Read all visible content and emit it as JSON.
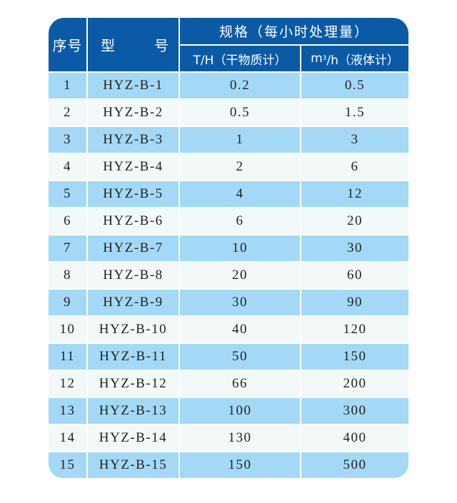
{
  "header": {
    "col_index": "序号",
    "col_model_a": "型",
    "col_model_b": "号",
    "spec_group": "规格（每小时处理量）",
    "spec_dry": "T/H（干物质计）",
    "spec_liquid_unit": "m",
    "spec_liquid_sup": "3",
    "spec_liquid_rest": "/h（液体计）"
  },
  "colors": {
    "header": "#0b5aa6",
    "row_odd": "#a3d9f6",
    "row_even": "#f3f8f8"
  },
  "rows": [
    {
      "no": "1",
      "model": "HYZ-B-1",
      "dry": "0.2",
      "liquid": "0.5"
    },
    {
      "no": "2",
      "model": "HYZ-B-2",
      "dry": "0.5",
      "liquid": "1.5"
    },
    {
      "no": "3",
      "model": "HYZ-B-3",
      "dry": "1",
      "liquid": "3"
    },
    {
      "no": "4",
      "model": "HYZ-B-4",
      "dry": "2",
      "liquid": "6"
    },
    {
      "no": "5",
      "model": "HYZ-B-5",
      "dry": "4",
      "liquid": "12"
    },
    {
      "no": "6",
      "model": "HYZ-B-6",
      "dry": "6",
      "liquid": "20"
    },
    {
      "no": "7",
      "model": "HYZ-B-7",
      "dry": "10",
      "liquid": "30"
    },
    {
      "no": "8",
      "model": "HYZ-B-8",
      "dry": "20",
      "liquid": "60"
    },
    {
      "no": "9",
      "model": "HYZ-B-9",
      "dry": "30",
      "liquid": "90"
    },
    {
      "no": "10",
      "model": "HYZ-B-10",
      "dry": "40",
      "liquid": "120"
    },
    {
      "no": "11",
      "model": "HYZ-B-11",
      "dry": "50",
      "liquid": "150"
    },
    {
      "no": "12",
      "model": "HYZ-B-12",
      "dry": "66",
      "liquid": "200"
    },
    {
      "no": "13",
      "model": "HYZ-B-13",
      "dry": "100",
      "liquid": "300"
    },
    {
      "no": "14",
      "model": "HYZ-B-14",
      "dry": "130",
      "liquid": "400"
    },
    {
      "no": "15",
      "model": "HYZ-B-15",
      "dry": "150",
      "liquid": "500"
    }
  ]
}
